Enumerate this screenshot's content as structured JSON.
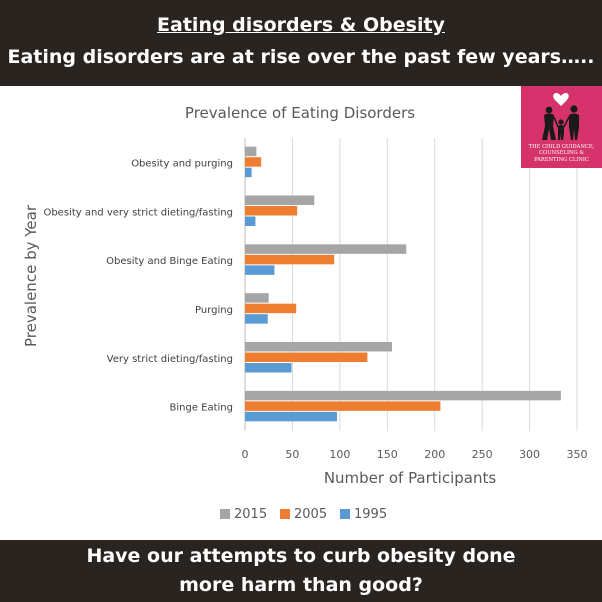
{
  "header": {
    "title": "Eating disorders & Obesity",
    "subtitle": "Eating disorders are at rise over the past few years….."
  },
  "footer": {
    "line1": "Have our attempts to curb obesity done",
    "line2": "more harm than good?"
  },
  "logo": {
    "text": "THE CHILD GUIDANCE, COUNSELING & PARENTING CLINIC"
  },
  "colors": {
    "s2015": "#a5a5a5",
    "s2005": "#ed7d31",
    "s1995": "#5b9bd5",
    "brand": "#d6336c"
  },
  "chart_data": {
    "type": "bar",
    "orientation": "horizontal",
    "title": "Prevalence of Eating Disorders",
    "xlabel": "Number of Participants",
    "ylabel": "Prevalence by Year",
    "xlim": [
      0,
      350
    ],
    "xticks": [
      0,
      50,
      100,
      150,
      200,
      250,
      300,
      350
    ],
    "grid": true,
    "legend_position": "bottom",
    "categories": [
      "Obesity and purging",
      "Obesity and very strict dieting/fasting",
      "Obesity and Binge Eating",
      "Purging",
      "Very strict dieting/fasting",
      "Binge Eating"
    ],
    "series": [
      {
        "name": "2015",
        "color": "#a5a5a5",
        "values": [
          12,
          73,
          170,
          25,
          155,
          333
        ]
      },
      {
        "name": "2005",
        "color": "#ed7d31",
        "values": [
          17,
          55,
          94,
          54,
          129,
          206
        ]
      },
      {
        "name": "1995",
        "color": "#5b9bd5",
        "values": [
          7,
          11,
          31,
          24,
          49,
          97
        ]
      }
    ]
  }
}
